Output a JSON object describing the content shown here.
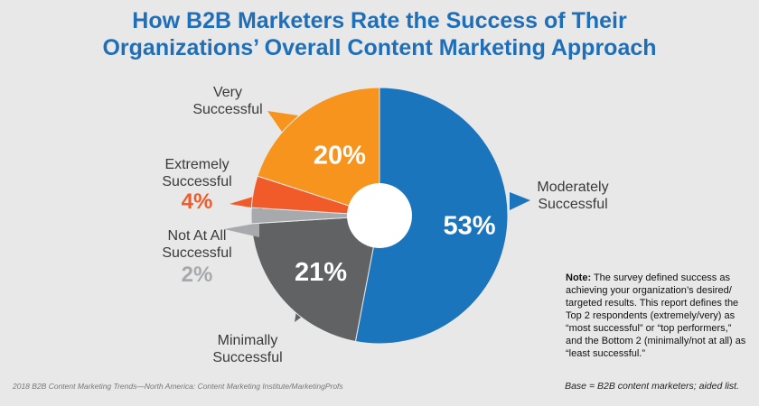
{
  "title_line1": "How B2B Marketers Rate the Success of Their",
  "title_line2": "Organizations’ Overall Content Marketing Approach",
  "note_label": "Note:",
  "note_text": " The survey defined success as achieving your organization’s desired/ targeted results. This report defines the Top 2 respondents (extremely/very) as “most successful” or “top performers,” and the Bottom 2 (minimally/not at all) as “least successful.”",
  "source": "2018 B2B Content Marketing Trends—North America: Content Marketing Institute/MarketingProfs",
  "base": "Base = B2B content marketers; aided list.",
  "chart_data": {
    "type": "pie",
    "title": "How B2B Marketers Rate the Success of Their Organizations’ Overall Content Marketing Approach",
    "slices": [
      {
        "key": "moderately",
        "label_lines": [
          "Moderately",
          "Successful"
        ],
        "value": 53,
        "display": "53%",
        "color": "#1b75bc",
        "label_color": "#3a3a3a"
      },
      {
        "key": "minimally",
        "label_lines": [
          "Minimally",
          "Successful"
        ],
        "value": 21,
        "display": "21%",
        "color": "#606264",
        "label_color": "#3a3a3a"
      },
      {
        "key": "not_at_all",
        "label_lines": [
          "Not At All",
          "Successful"
        ],
        "value": 2,
        "display": "2%",
        "color": "#a7a9ac",
        "label_color": "#3a3a3a",
        "value_color": "#a7a9ac"
      },
      {
        "key": "extremely",
        "label_lines": [
          "Extremely",
          "Successful"
        ],
        "value": 4,
        "display": "4%",
        "color": "#f15a29",
        "label_color": "#3a3a3a",
        "value_color": "#f15a29"
      },
      {
        "key": "very",
        "label_lines": [
          "Very",
          "Successful"
        ],
        "value": 20,
        "display": "20%",
        "color": "#f7941d",
        "label_color": "#3a3a3a"
      }
    ]
  }
}
